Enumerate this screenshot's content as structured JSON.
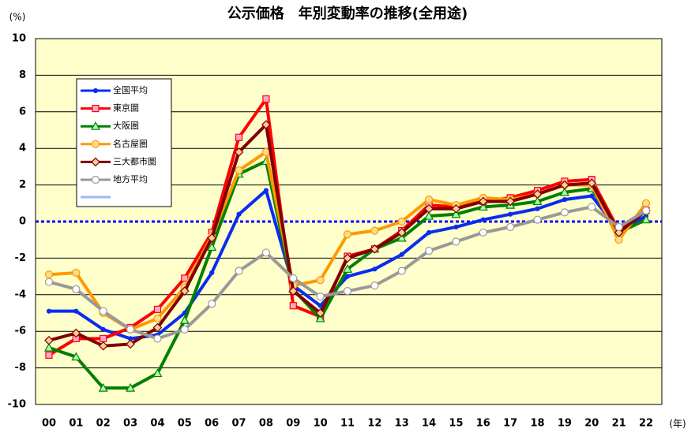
{
  "chart_data": {
    "type": "line",
    "title": "公示価格　年別変動率の推移(全用途)",
    "y_unit": "(%)",
    "x_unit": "(年)",
    "categories": [
      "00",
      "01",
      "02",
      "03",
      "04",
      "05",
      "06",
      "07",
      "08",
      "09",
      "10",
      "11",
      "12",
      "13",
      "14",
      "15",
      "16",
      "17",
      "18",
      "19",
      "20",
      "21",
      "22"
    ],
    "ylim": [
      -10,
      10
    ],
    "yticks": [
      -10,
      -8,
      -6,
      -4,
      -2,
      0,
      2,
      4,
      6,
      8,
      10
    ],
    "grid": true,
    "legend": "upper left",
    "series": [
      {
        "name": "全国平均",
        "color": "#0a2cf0",
        "marker": "dot",
        "values": [
          -4.9,
          -4.9,
          -5.9,
          -6.4,
          -6.2,
          -5.0,
          -2.8,
          0.4,
          1.7,
          -3.5,
          -4.6,
          -3.0,
          -2.6,
          -1.8,
          -0.6,
          -0.3,
          0.1,
          0.4,
          0.7,
          1.2,
          1.4,
          -0.5,
          0.3
        ]
      },
      {
        "name": "東京圏",
        "color": "#ff0000",
        "marker": "square",
        "values": [
          -7.3,
          -6.4,
          -6.4,
          -5.8,
          -4.8,
          -3.1,
          -0.6,
          4.6,
          6.7,
          -4.6,
          -5.2,
          -1.9,
          -1.5,
          -0.5,
          0.9,
          0.8,
          1.1,
          1.3,
          1.7,
          2.2,
          2.3,
          -0.5,
          0.6
        ]
      },
      {
        "name": "大阪圏",
        "color": "#008000",
        "marker": "triangle",
        "values": [
          -6.9,
          -7.4,
          -9.1,
          -9.1,
          -8.3,
          -5.4,
          -1.4,
          2.6,
          3.3,
          -3.7,
          -5.3,
          -2.6,
          -1.5,
          -0.9,
          0.3,
          0.4,
          0.8,
          0.9,
          1.1,
          1.6,
          1.8,
          -0.6,
          0.1
        ]
      },
      {
        "name": "名古屋圏",
        "color": "#ff9900",
        "marker": "circle",
        "values": [
          -2.9,
          -2.8,
          -5.0,
          -5.9,
          -5.3,
          -3.6,
          -0.8,
          2.8,
          3.8,
          -3.5,
          -3.2,
          -0.7,
          -0.5,
          0.0,
          1.2,
          0.9,
          1.3,
          1.2,
          1.5,
          2.0,
          2.0,
          -1.0,
          1.0
        ]
      },
      {
        "name": "三大都市圏",
        "color": "#800000",
        "marker": "diamond",
        "values": [
          -6.5,
          -6.1,
          -6.8,
          -6.7,
          -5.8,
          -3.8,
          -0.9,
          3.8,
          5.3,
          -3.8,
          -5.0,
          -2.0,
          -1.5,
          -0.6,
          0.7,
          0.7,
          1.1,
          1.1,
          1.5,
          2.0,
          2.1,
          -0.6,
          0.6
        ]
      },
      {
        "name": "地方平均",
        "color": "#999999",
        "marker": "circle",
        "values": [
          -3.3,
          -3.7,
          -4.9,
          -5.9,
          -6.4,
          -5.9,
          -4.5,
          -2.7,
          -1.7,
          -3.1,
          -4.1,
          -3.8,
          -3.5,
          -2.7,
          -1.6,
          -1.1,
          -0.6,
          -0.3,
          0.1,
          0.5,
          0.8,
          -0.3,
          0.6
        ]
      }
    ]
  }
}
